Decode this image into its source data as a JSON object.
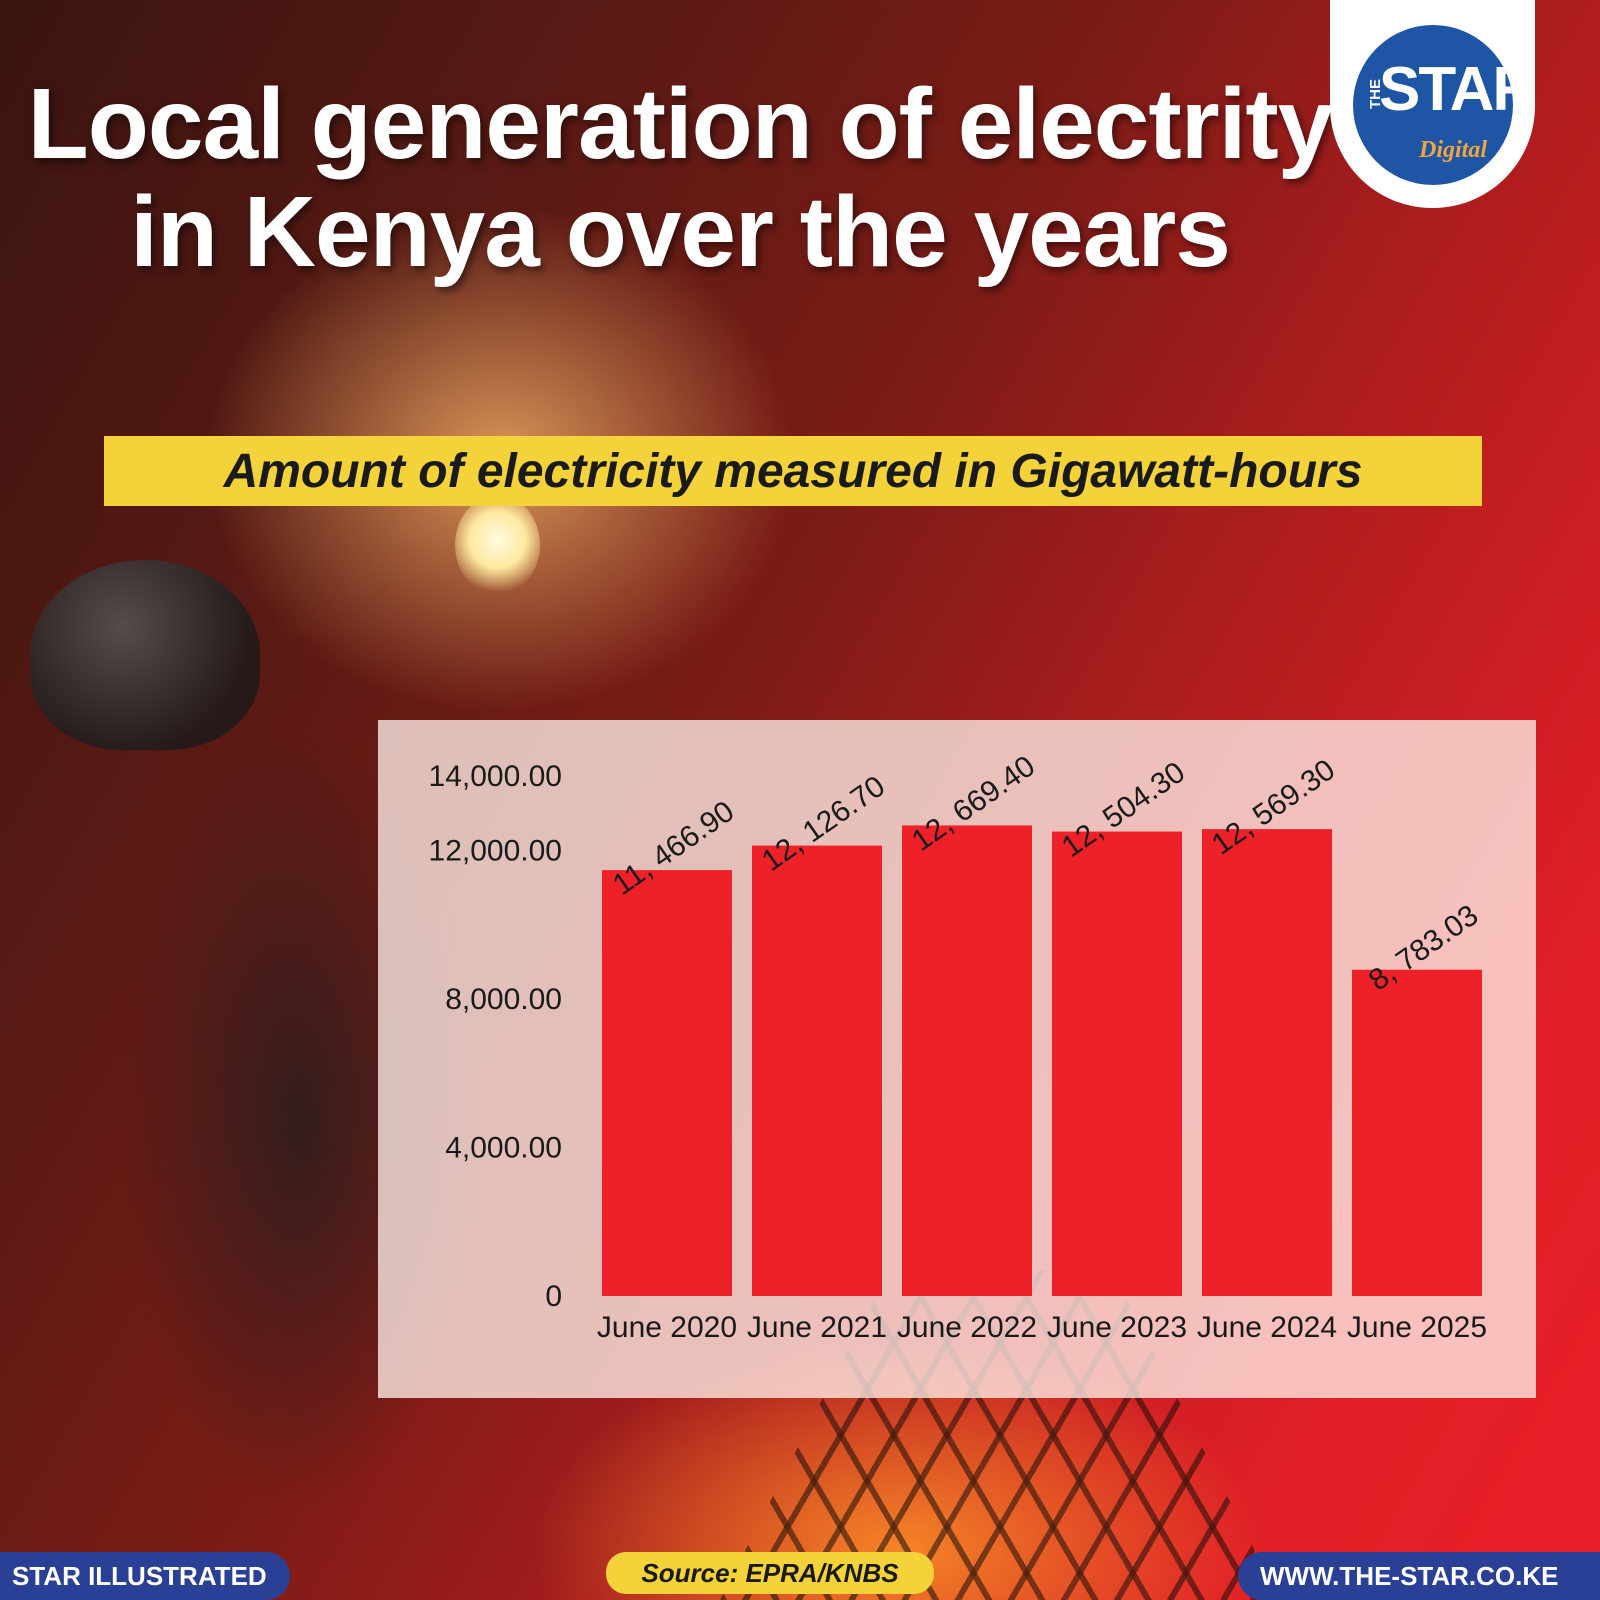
{
  "title": "Local generation of electrity in Kenya over the years",
  "subtitle": "Amount of electricity measured in Gigawatt-hours",
  "logo": {
    "the": "THE",
    "star": "STAR",
    "digital": "Digital"
  },
  "footer": {
    "left": "STAR ILLUSTRATED",
    "source": "Source: EPRA/KNBS",
    "right": "WWW.THE-STAR.CO.KE"
  },
  "colors": {
    "bar": "#ee2129",
    "subtitle_bg": "#f3d339",
    "footer_bg": "#2a3f96",
    "logo_blue": "#1f55a5"
  },
  "chart_data": {
    "type": "bar",
    "categories": [
      "June 2020",
      "June 2021",
      "June 2022",
      "June 2023",
      "June 2024",
      "June 2025"
    ],
    "values": [
      11466.9,
      12126.7,
      12669.4,
      12504.3,
      12569.3,
      8783.03
    ],
    "data_labels": [
      "11, 466.90",
      "12, 126.70",
      "12, 669.40",
      "12, 504.30",
      "12, 569.30",
      "8, 783.03"
    ],
    "yticks": [
      {
        "value": 0,
        "label": "0"
      },
      {
        "value": 4000,
        "label": "4,000.00"
      },
      {
        "value": 8000,
        "label": "8,000.00"
      },
      {
        "value": 12000,
        "label": "12,000.00"
      },
      {
        "value": 14000,
        "label": "14,000.00"
      }
    ],
    "title": "",
    "xlabel": "",
    "ylabel": "",
    "ylim": [
      0,
      14000
    ],
    "grid": false,
    "legend": "none"
  }
}
